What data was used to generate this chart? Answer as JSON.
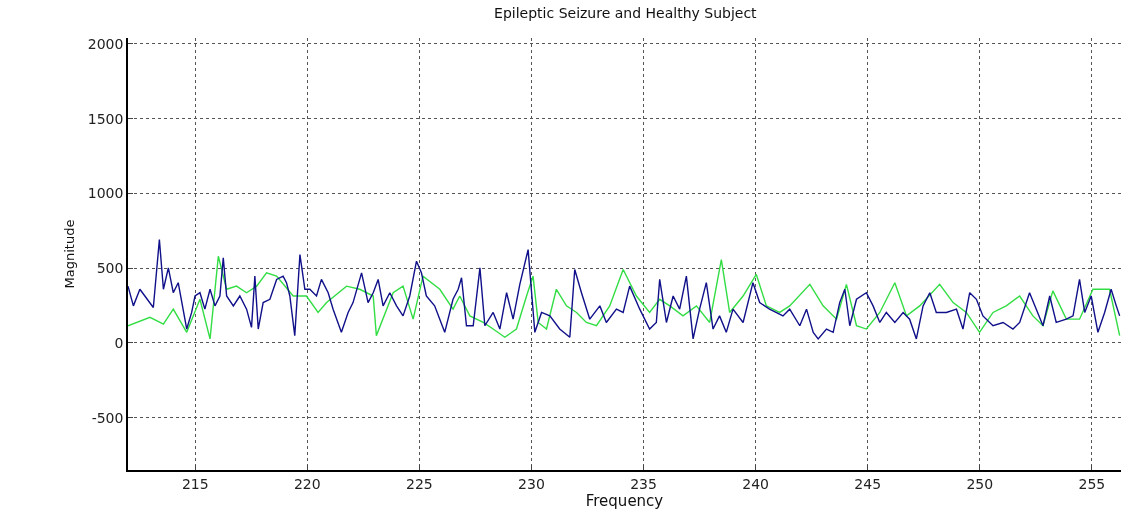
{
  "chart_data": {
    "type": "line",
    "title": "Epileptic Seizure and Healthy Subject",
    "xlabel": "Frequency",
    "ylabel": "Magnitude",
    "xlim": [
      212,
      256.3
    ],
    "xticks": [
      215,
      220,
      225,
      230,
      235,
      240,
      245,
      250,
      255
    ],
    "ylim": [
      -850,
      2040
    ],
    "yticks": [
      -500,
      0,
      500,
      1000,
      1500,
      2000
    ],
    "grid": true,
    "marker": "none",
    "line_style": "solid",
    "series": [
      {
        "color": "#33dd44",
        "x": [
          212.0,
          212.98,
          213.58,
          214.02,
          214.62,
          215.21,
          215.66,
          216.03,
          216.4,
          216.84,
          217.29,
          217.74,
          218.18,
          218.63,
          219.37,
          219.96,
          220.48,
          220.86,
          221.75,
          222.34,
          222.94,
          223.08,
          223.83,
          224.27,
          224.72,
          225.16,
          225.91,
          226.5,
          226.8,
          227.25,
          227.85,
          228.29,
          228.81,
          229.33,
          229.78,
          230.07,
          230.3,
          230.67,
          231.11,
          231.56,
          232.01,
          232.45,
          232.9,
          233.49,
          234.09,
          234.68,
          235.27,
          235.72,
          236.17,
          236.76,
          237.36,
          237.95,
          238.47,
          238.84,
          239.44,
          240.03,
          240.48,
          241.07,
          241.52,
          242.42,
          243.01,
          243.61,
          244.05,
          244.5,
          244.94,
          245.54,
          246.21,
          246.73,
          247.32,
          248.21,
          248.81,
          249.4,
          249.99,
          250.59,
          251.18,
          251.78,
          252.37,
          252.82,
          253.26,
          253.86,
          254.45,
          255.05,
          255.79,
          256.24
        ],
        "values": [
          115,
          171,
          126,
          226,
          71,
          292,
          27,
          580,
          359,
          380,
          336,
          380,
          469,
          447,
          314,
          314,
          204,
          270,
          380,
          359,
          314,
          49,
          336,
          380,
          159,
          447,
          359,
          226,
          314,
          181,
          137,
          93,
          38,
          93,
          314,
          447,
          137,
          93,
          359,
          248,
          204,
          137,
          115,
          248,
          491,
          314,
          204,
          292,
          248,
          181,
          248,
          137,
          558,
          204,
          314,
          458,
          248,
          204,
          248,
          392,
          248,
          159,
          392,
          115,
          93,
          204,
          403,
          181,
          248,
          392,
          270,
          204,
          71,
          204,
          248,
          314,
          181,
          115,
          348,
          159,
          159,
          359,
          359,
          49
        ]
      },
      {
        "color": "#10108a",
        "x": [
          212.0,
          212.24,
          212.53,
          213.13,
          213.4,
          213.58,
          213.8,
          214.02,
          214.24,
          214.62,
          214.84,
          214.99,
          215.21,
          215.43,
          215.66,
          215.88,
          216.1,
          216.25,
          216.4,
          216.7,
          216.99,
          217.29,
          217.51,
          217.66,
          217.81,
          218.03,
          218.33,
          218.63,
          218.92,
          219.07,
          219.22,
          219.44,
          219.67,
          219.89,
          220.11,
          220.41,
          220.63,
          220.93,
          221.15,
          221.52,
          221.82,
          222.04,
          222.42,
          222.71,
          222.94,
          223.16,
          223.38,
          223.68,
          223.98,
          224.27,
          224.57,
          224.87,
          225.09,
          225.31,
          225.68,
          226.13,
          226.5,
          226.73,
          226.88,
          227.1,
          227.4,
          227.7,
          227.92,
          228.29,
          228.59,
          228.89,
          229.18,
          229.48,
          229.85,
          230.15,
          230.45,
          230.82,
          231.26,
          231.71,
          231.93,
          232.23,
          232.6,
          233.05,
          233.34,
          233.79,
          234.09,
          234.38,
          234.83,
          235.27,
          235.57,
          235.72,
          236.02,
          236.32,
          236.61,
          236.91,
          237.21,
          237.5,
          237.8,
          238.1,
          238.39,
          238.69,
          238.99,
          239.44,
          239.88,
          240.18,
          240.62,
          241.22,
          241.52,
          241.97,
          242.27,
          242.57,
          242.79,
          243.16,
          243.46,
          243.75,
          243.98,
          244.2,
          244.5,
          244.94,
          245.24,
          245.54,
          245.83,
          246.21,
          246.58,
          246.87,
          247.17,
          247.47,
          247.77,
          248.06,
          248.51,
          248.96,
          249.25,
          249.55,
          249.85,
          250.14,
          250.59,
          251.04,
          251.48,
          251.78,
          252.22,
          252.52,
          252.82,
          253.12,
          253.41,
          253.86,
          254.16,
          254.45,
          254.68,
          254.97,
          255.27,
          255.57,
          255.86,
          256.09,
          256.24
        ],
        "values": [
          380,
          248,
          359,
          237,
          691,
          359,
          502,
          336,
          403,
          93,
          204,
          314,
          336,
          226,
          359,
          248,
          314,
          569,
          314,
          248,
          314,
          226,
          104,
          447,
          93,
          270,
          292,
          425,
          447,
          403,
          314,
          49,
          591,
          359,
          359,
          314,
          425,
          336,
          226,
          71,
          204,
          270,
          469,
          270,
          336,
          425,
          248,
          336,
          248,
          181,
          314,
          547,
          469,
          314,
          248,
          71,
          292,
          359,
          436,
          115,
          115,
          502,
          115,
          204,
          93,
          336,
          159,
          392,
          624,
          71,
          204,
          181,
          93,
          38,
          491,
          336,
          159,
          248,
          137,
          226,
          204,
          380,
          226,
          93,
          137,
          425,
          137,
          314,
          226,
          447,
          27,
          226,
          403,
          93,
          181,
          71,
          226,
          137,
          403,
          270,
          226,
          181,
          226,
          115,
          226,
          71,
          27,
          93,
          71,
          270,
          359,
          115,
          292,
          336,
          248,
          137,
          204,
          137,
          204,
          159,
          27,
          248,
          336,
          204,
          204,
          226,
          93,
          336,
          292,
          181,
          115,
          137,
          93,
          137,
          336,
          226,
          115,
          314,
          137,
          159,
          181,
          425,
          204,
          314,
          71,
          204,
          359,
          248,
          181
        ]
      }
    ]
  }
}
